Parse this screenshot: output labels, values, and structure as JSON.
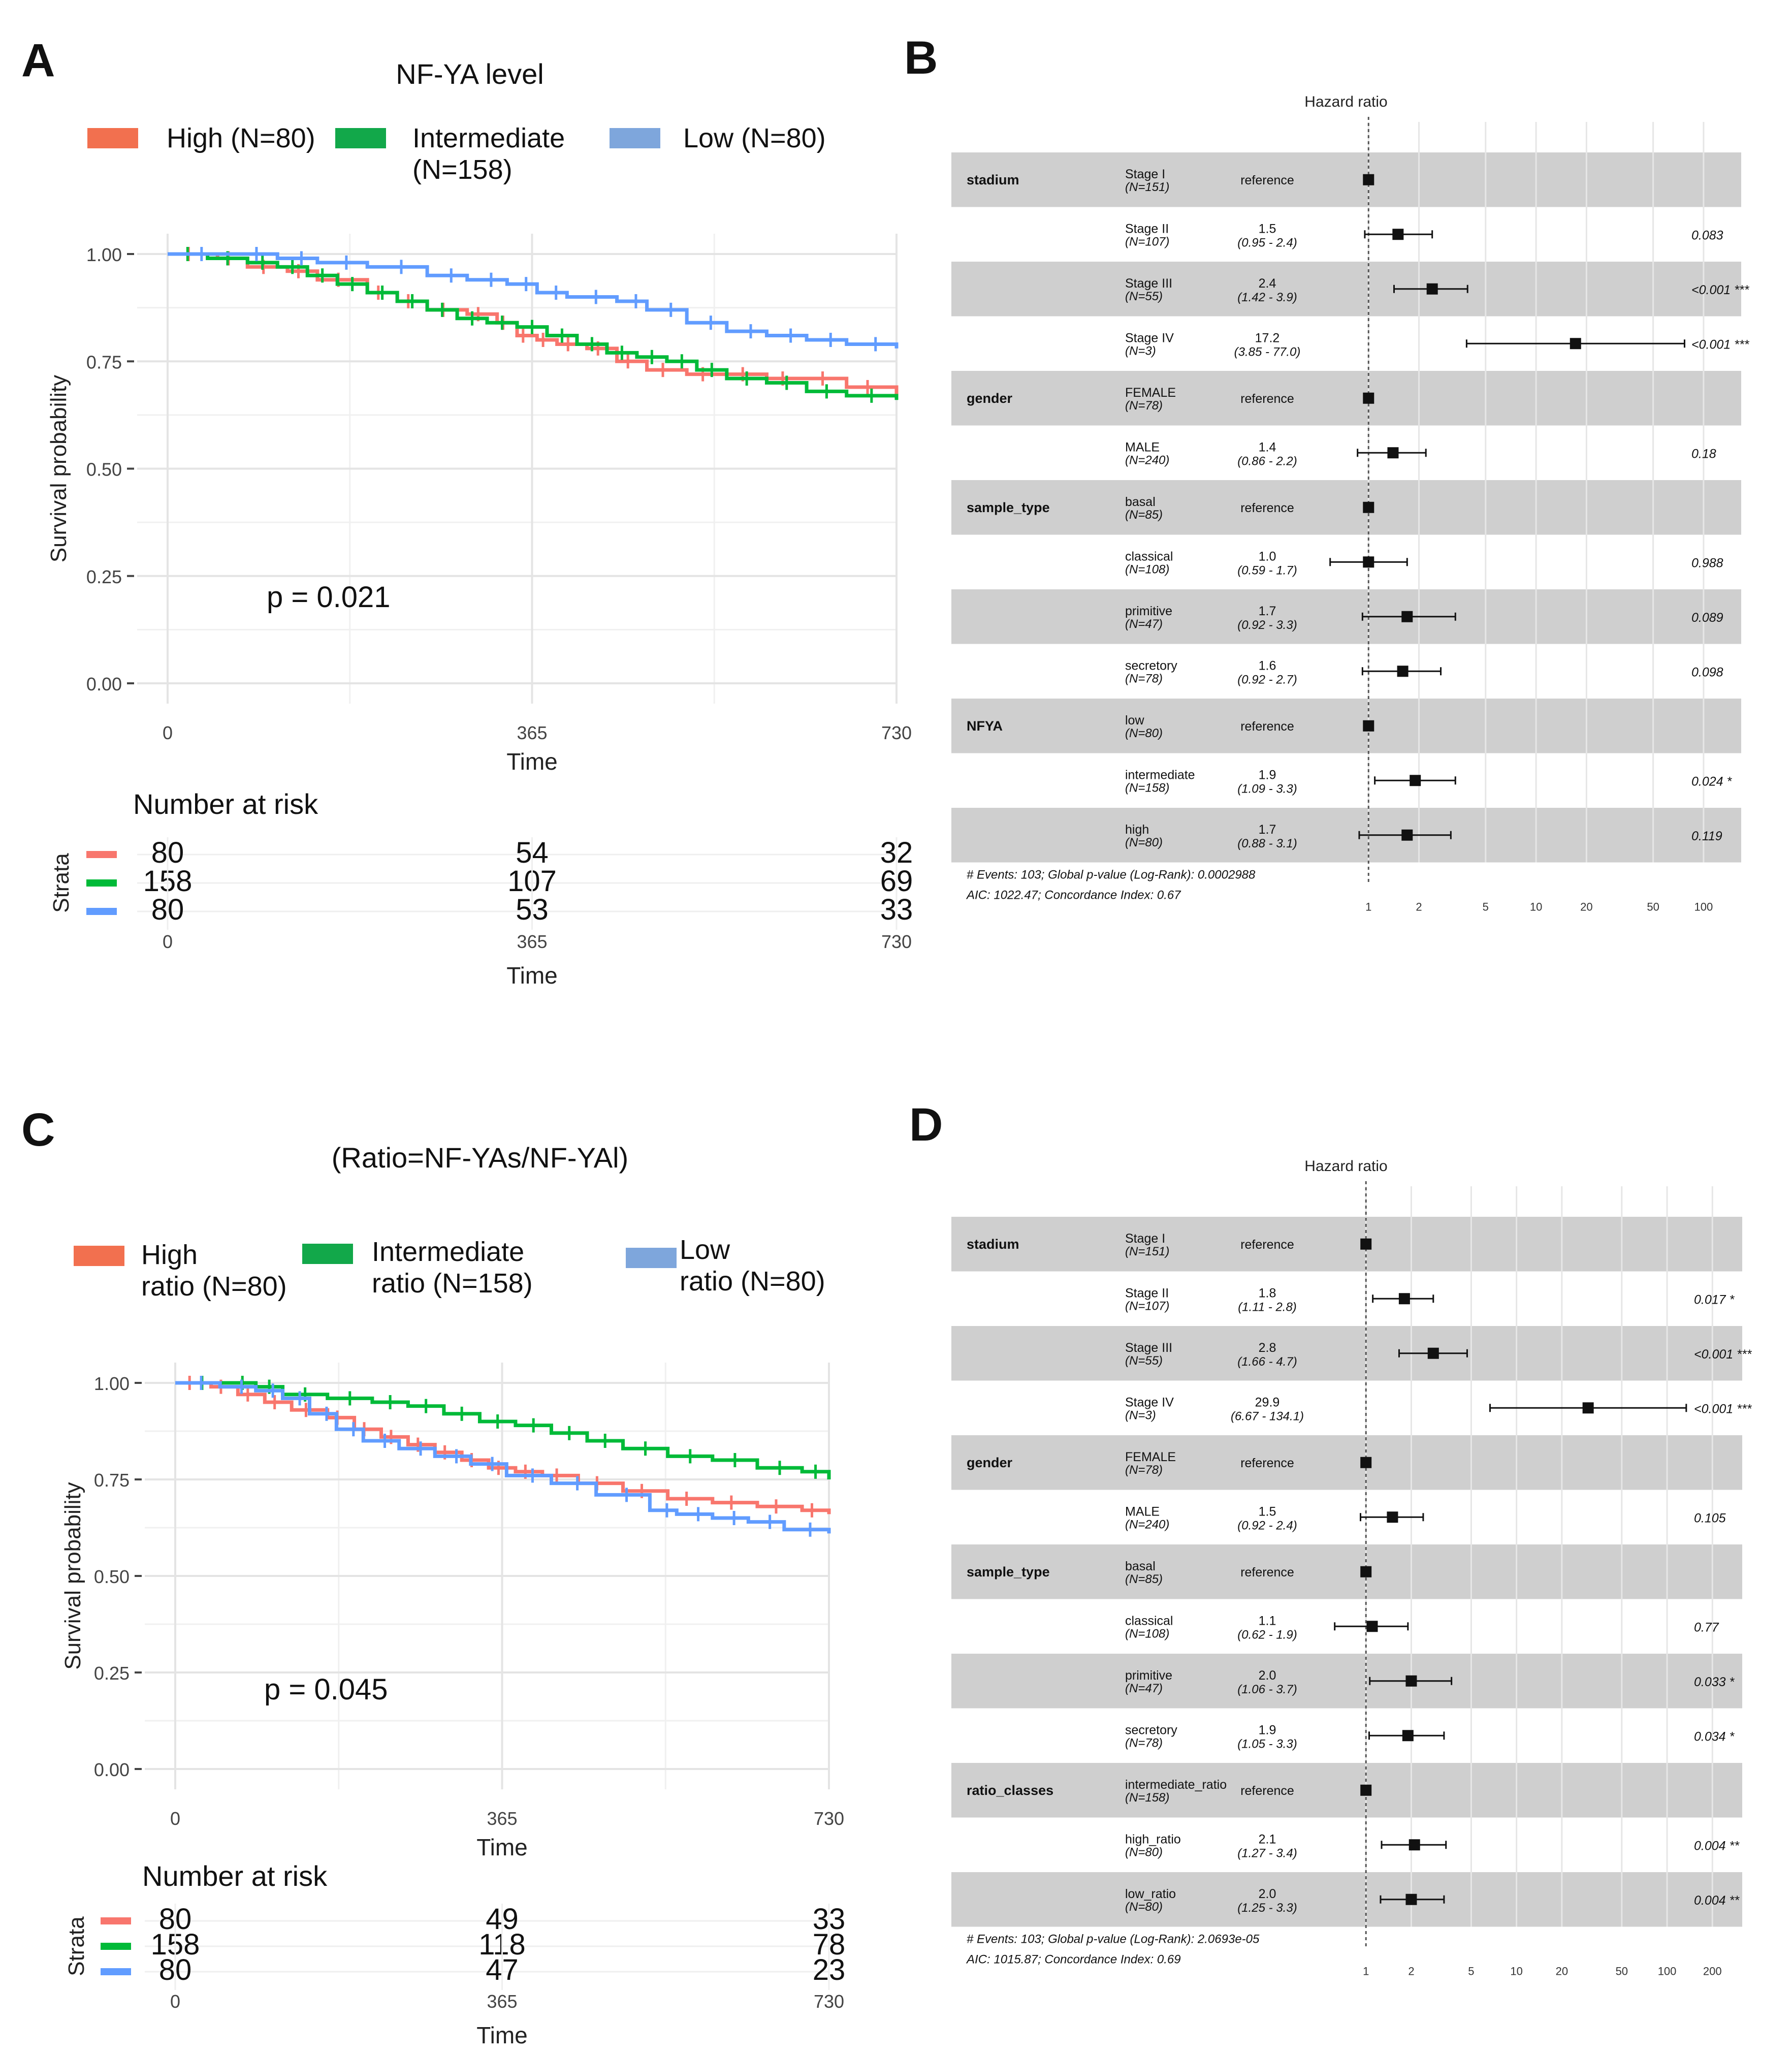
{
  "panels": {
    "A": {
      "letter": "A",
      "title": "NF-YA level",
      "legend": [
        {
          "lines": [
            "High (N=80)"
          ],
          "color": "#f2704f"
        },
        {
          "lines": [
            "Intermediate",
            "(N=158)"
          ],
          "color": "#12a84a"
        },
        {
          "lines": [
            "Low (N=80)"
          ],
          "color": "#7ea6dc"
        }
      ],
      "p_value": "p = 0.021",
      "risk_table": {
        "title": "Number at risk",
        "strata_label": "Strata",
        "rows": [
          {
            "color": "#f8766d",
            "values": [
              "80",
              "54",
              "32"
            ]
          },
          {
            "color": "#00ba38",
            "values": [
              "158",
              "107",
              "69"
            ]
          },
          {
            "color": "#619cff",
            "values": [
              "80",
              "53",
              "33"
            ]
          }
        ],
        "xlabel": "Time",
        "xticks": [
          "0",
          "365",
          "730"
        ]
      }
    },
    "B": {
      "letter": "B",
      "title": "Hazard ratio",
      "rows": [
        {
          "var": "stadium",
          "level": "Stage I",
          "n": "(N=151)",
          "hr": "reference",
          "ci": "",
          "p": "",
          "shade": true
        },
        {
          "var": "",
          "level": "Stage II",
          "n": "(N=107)",
          "hr": "1.5",
          "ci": "(0.95 - 2.4)",
          "p": "0.083",
          "shade": false
        },
        {
          "var": "",
          "level": "Stage III",
          "n": "(N=55)",
          "hr": "2.4",
          "ci": "(1.42 - 3.9)",
          "p": "<0.001 ***",
          "shade": true
        },
        {
          "var": "",
          "level": "Stage IV",
          "n": "(N=3)",
          "hr": "17.2",
          "ci": "(3.85 - 77.0)",
          "p": "<0.001 ***",
          "shade": false
        },
        {
          "var": "gender",
          "level": "FEMALE",
          "n": "(N=78)",
          "hr": "reference",
          "ci": "",
          "p": "",
          "shade": true
        },
        {
          "var": "",
          "level": "MALE",
          "n": "(N=240)",
          "hr": "1.4",
          "ci": "(0.86 - 2.2)",
          "p": "0.18",
          "shade": false
        },
        {
          "var": "sample_type",
          "level": "basal",
          "n": "(N=85)",
          "hr": "reference",
          "ci": "",
          "p": "",
          "shade": true
        },
        {
          "var": "",
          "level": "classical",
          "n": "(N=108)",
          "hr": "1.0",
          "ci": "(0.59 - 1.7)",
          "p": "0.988",
          "shade": false
        },
        {
          "var": "",
          "level": "primitive",
          "n": "(N=47)",
          "hr": "1.7",
          "ci": "(0.92 - 3.3)",
          "p": "0.089",
          "shade": true
        },
        {
          "var": "",
          "level": "secretory",
          "n": "(N=78)",
          "hr": "1.6",
          "ci": "(0.92 - 2.7)",
          "p": "0.098",
          "shade": false
        },
        {
          "var": "NFYA",
          "level": "low",
          "n": "(N=80)",
          "hr": "reference",
          "ci": "",
          "p": "",
          "shade": true
        },
        {
          "var": "",
          "level": "intermediate",
          "n": "(N=158)",
          "hr": "1.9",
          "ci": "(1.09 - 3.3)",
          "p": "0.024 *",
          "shade": false
        },
        {
          "var": "",
          "level": "high",
          "n": "(N=80)",
          "hr": "1.7",
          "ci": "(0.88 - 3.1)",
          "p": "0.119",
          "shade": true
        }
      ],
      "footer": [
        "# Events: 103; Global p-value (Log-Rank): 0.0002988",
        "AIC: 1022.47; Concordance Index: 0.67"
      ],
      "xticks": [
        "1",
        "2",
        "5",
        "10",
        "20",
        "50",
        "100"
      ]
    },
    "C": {
      "letter": "C",
      "title": "(Ratio=NF-YAs/NF-YAl)",
      "legend": [
        {
          "lines": [
            "High",
            "ratio (N=80)"
          ],
          "color": "#f2704f"
        },
        {
          "lines": [
            "Intermediate",
            "ratio (N=158)"
          ],
          "color": "#12a84a"
        },
        {
          "lines": [
            "Low",
            "ratio (N=80)"
          ],
          "color": "#7ea6dc"
        }
      ],
      "p_value": "p = 0.045",
      "risk_table": {
        "title": "Number at risk",
        "strata_label": "Strata",
        "rows": [
          {
            "color": "#f8766d",
            "values": [
              "80",
              "49",
              "33"
            ]
          },
          {
            "color": "#00ba38",
            "values": [
              "158",
              "118",
              "78"
            ]
          },
          {
            "color": "#619cff",
            "values": [
              "80",
              "47",
              "23"
            ]
          }
        ],
        "xlabel": "Time",
        "xticks": [
          "0",
          "365",
          "730"
        ]
      }
    },
    "D": {
      "letter": "D",
      "title": "Hazard ratio",
      "rows": [
        {
          "var": "stadium",
          "level": "Stage I",
          "n": "(N=151)",
          "hr": "reference",
          "ci": "",
          "p": "",
          "shade": true
        },
        {
          "var": "",
          "level": "Stage II",
          "n": "(N=107)",
          "hr": "1.8",
          "ci": "(1.11 - 2.8)",
          "p": "0.017 *",
          "shade": false
        },
        {
          "var": "",
          "level": "Stage III",
          "n": "(N=55)",
          "hr": "2.8",
          "ci": "(1.66 - 4.7)",
          "p": "<0.001 ***",
          "shade": true
        },
        {
          "var": "",
          "level": "Stage IV",
          "n": "(N=3)",
          "hr": "29.9",
          "ci": "(6.67 - 134.1)",
          "p": "<0.001 ***",
          "shade": false
        },
        {
          "var": "gender",
          "level": "FEMALE",
          "n": "(N=78)",
          "hr": "reference",
          "ci": "",
          "p": "",
          "shade": true
        },
        {
          "var": "",
          "level": "MALE",
          "n": "(N=240)",
          "hr": "1.5",
          "ci": "(0.92 - 2.4)",
          "p": "0.105",
          "shade": false
        },
        {
          "var": "sample_type",
          "level": "basal",
          "n": "(N=85)",
          "hr": "reference",
          "ci": "",
          "p": "",
          "shade": true
        },
        {
          "var": "",
          "level": "classical",
          "n": "(N=108)",
          "hr": "1.1",
          "ci": "(0.62 - 1.9)",
          "p": "0.77",
          "shade": false
        },
        {
          "var": "",
          "level": "primitive",
          "n": "(N=47)",
          "hr": "2.0",
          "ci": "(1.06 - 3.7)",
          "p": "0.033 *",
          "shade": true
        },
        {
          "var": "",
          "level": "secretory",
          "n": "(N=78)",
          "hr": "1.9",
          "ci": "(1.05 - 3.3)",
          "p": "0.034 *",
          "shade": false
        },
        {
          "var": "ratio_classes",
          "level": "intermediate_ratio",
          "n": "(N=158)",
          "hr": "reference",
          "ci": "",
          "p": "",
          "shade": true
        },
        {
          "var": "",
          "level": "high_ratio",
          "n": "(N=80)",
          "hr": "2.1",
          "ci": "(1.27 - 3.4)",
          "p": "0.004 **",
          "shade": false
        },
        {
          "var": "",
          "level": "low_ratio",
          "n": "(N=80)",
          "hr": "2.0",
          "ci": "(1.25 - 3.3)",
          "p": "0.004 **",
          "shade": true
        }
      ],
      "footer": [
        "# Events: 103; Global p-value (Log-Rank): 2.0693e-05",
        "AIC: 1015.87; Concordance Index: 0.69"
      ],
      "xticks": [
        "1",
        "2",
        "5",
        "10",
        "20",
        "50",
        "100",
        "200"
      ]
    }
  },
  "chart_data": [
    {
      "type": "line",
      "panel": "A",
      "title": "NF-YA level",
      "xlabel": "Time",
      "ylabel": "Survival probability",
      "xlim": [
        0,
        730
      ],
      "ylim": [
        0,
        1
      ],
      "xticks": [
        "0",
        "365",
        "730"
      ],
      "yticks": [
        "0.00",
        "0.25",
        "0.50",
        "0.75",
        "1.00"
      ],
      "annotation": "p = 0.021",
      "series": [
        {
          "name": "High (N=80)",
          "color": "#f8766d",
          "x": [
            0,
            50,
            80,
            120,
            150,
            200,
            230,
            260,
            300,
            330,
            350,
            370,
            390,
            420,
            450,
            480,
            520,
            560,
            600,
            640,
            680,
            730
          ],
          "y": [
            1.0,
            0.99,
            0.97,
            0.96,
            0.94,
            0.91,
            0.89,
            0.87,
            0.86,
            0.84,
            0.81,
            0.8,
            0.79,
            0.78,
            0.75,
            0.73,
            0.72,
            0.72,
            0.71,
            0.71,
            0.69,
            0.67
          ]
        },
        {
          "name": "Intermediate (N=158)",
          "color": "#00ba38",
          "x": [
            0,
            40,
            80,
            110,
            140,
            170,
            200,
            230,
            260,
            290,
            320,
            350,
            380,
            410,
            440,
            470,
            500,
            530,
            560,
            600,
            640,
            680,
            730
          ],
          "y": [
            1.0,
            0.99,
            0.98,
            0.97,
            0.95,
            0.93,
            0.91,
            0.89,
            0.87,
            0.85,
            0.84,
            0.83,
            0.81,
            0.79,
            0.77,
            0.76,
            0.75,
            0.73,
            0.71,
            0.7,
            0.68,
            0.67,
            0.66
          ]
        },
        {
          "name": "Low (N=80)",
          "color": "#619cff",
          "x": [
            0,
            60,
            110,
            150,
            200,
            260,
            300,
            340,
            370,
            400,
            450,
            480,
            520,
            560,
            600,
            640,
            680,
            730
          ],
          "y": [
            1.0,
            1.0,
            0.99,
            0.98,
            0.97,
            0.95,
            0.94,
            0.93,
            0.91,
            0.9,
            0.89,
            0.87,
            0.84,
            0.82,
            0.81,
            0.8,
            0.79,
            0.78
          ]
        }
      ]
    },
    {
      "type": "line",
      "panel": "C",
      "title": "(Ratio=NF-YAs/NF-YAl)",
      "xlabel": "Time",
      "ylabel": "Survival probability",
      "xlim": [
        0,
        730
      ],
      "ylim": [
        0,
        1
      ],
      "xticks": [
        "0",
        "365",
        "730"
      ],
      "yticks": [
        "0.00",
        "0.25",
        "0.50",
        "0.75",
        "1.00"
      ],
      "annotation": "p = 0.045",
      "series": [
        {
          "name": "High ratio (N=80)",
          "color": "#f8766d",
          "x": [
            0,
            40,
            70,
            100,
            130,
            170,
            200,
            230,
            260,
            290,
            320,
            350,
            380,
            410,
            450,
            500,
            550,
            600,
            650,
            700,
            730
          ],
          "y": [
            1.0,
            0.99,
            0.97,
            0.95,
            0.93,
            0.91,
            0.88,
            0.86,
            0.84,
            0.82,
            0.8,
            0.78,
            0.77,
            0.76,
            0.74,
            0.72,
            0.7,
            0.69,
            0.68,
            0.67,
            0.66
          ]
        },
        {
          "name": "Intermediate ratio (N=158)",
          "color": "#00ba38",
          "x": [
            0,
            60,
            90,
            120,
            170,
            220,
            260,
            300,
            340,
            380,
            420,
            460,
            500,
            550,
            600,
            650,
            700,
            730
          ],
          "y": [
            1.0,
            1.0,
            0.99,
            0.97,
            0.96,
            0.95,
            0.94,
            0.92,
            0.9,
            0.89,
            0.87,
            0.85,
            0.83,
            0.81,
            0.8,
            0.78,
            0.77,
            0.75
          ]
        },
        {
          "name": "Low ratio (N=80)",
          "color": "#619cff",
          "x": [
            0,
            50,
            90,
            120,
            150,
            180,
            210,
            250,
            290,
            330,
            370,
            420,
            470,
            530,
            560,
            600,
            640,
            680,
            730
          ],
          "y": [
            1.0,
            0.99,
            0.98,
            0.96,
            0.92,
            0.88,
            0.85,
            0.83,
            0.81,
            0.79,
            0.76,
            0.74,
            0.71,
            0.67,
            0.66,
            0.65,
            0.64,
            0.62,
            0.61
          ]
        }
      ]
    },
    {
      "type": "scatter",
      "panel": "B",
      "title": "Hazard ratio",
      "scale": "log",
      "xlim": [
        0.5,
        120
      ],
      "points": [
        {
          "label": "Stage I",
          "hr": 1.0,
          "lo": 1.0,
          "hi": 1.0
        },
        {
          "label": "Stage II",
          "hr": 1.5,
          "lo": 0.95,
          "hi": 2.4
        },
        {
          "label": "Stage III",
          "hr": 2.4,
          "lo": 1.42,
          "hi": 3.9
        },
        {
          "label": "Stage IV",
          "hr": 17.2,
          "lo": 3.85,
          "hi": 77.0
        },
        {
          "label": "FEMALE",
          "hr": 1.0,
          "lo": 1.0,
          "hi": 1.0
        },
        {
          "label": "MALE",
          "hr": 1.4,
          "lo": 0.86,
          "hi": 2.2
        },
        {
          "label": "basal",
          "hr": 1.0,
          "lo": 1.0,
          "hi": 1.0
        },
        {
          "label": "classical",
          "hr": 1.0,
          "lo": 0.59,
          "hi": 1.7
        },
        {
          "label": "primitive",
          "hr": 1.7,
          "lo": 0.92,
          "hi": 3.3
        },
        {
          "label": "secretory",
          "hr": 1.6,
          "lo": 0.92,
          "hi": 2.7
        },
        {
          "label": "low",
          "hr": 1.0,
          "lo": 1.0,
          "hi": 1.0
        },
        {
          "label": "intermediate",
          "hr": 1.9,
          "lo": 1.09,
          "hi": 3.3
        },
        {
          "label": "high",
          "hr": 1.7,
          "lo": 0.88,
          "hi": 3.1
        }
      ]
    },
    {
      "type": "scatter",
      "panel": "D",
      "title": "Hazard ratio",
      "scale": "log",
      "xlim": [
        0.5,
        250
      ],
      "points": [
        {
          "label": "Stage I",
          "hr": 1.0,
          "lo": 1.0,
          "hi": 1.0
        },
        {
          "label": "Stage II",
          "hr": 1.8,
          "lo": 1.11,
          "hi": 2.8
        },
        {
          "label": "Stage III",
          "hr": 2.8,
          "lo": 1.66,
          "hi": 4.7
        },
        {
          "label": "Stage IV",
          "hr": 29.9,
          "lo": 6.67,
          "hi": 134.1
        },
        {
          "label": "FEMALE",
          "hr": 1.0,
          "lo": 1.0,
          "hi": 1.0
        },
        {
          "label": "MALE",
          "hr": 1.5,
          "lo": 0.92,
          "hi": 2.4
        },
        {
          "label": "basal",
          "hr": 1.0,
          "lo": 1.0,
          "hi": 1.0
        },
        {
          "label": "classical",
          "hr": 1.1,
          "lo": 0.62,
          "hi": 1.9
        },
        {
          "label": "primitive",
          "hr": 2.0,
          "lo": 1.06,
          "hi": 3.7
        },
        {
          "label": "secretory",
          "hr": 1.9,
          "lo": 1.05,
          "hi": 3.3
        },
        {
          "label": "intermediate_ratio",
          "hr": 1.0,
          "lo": 1.0,
          "hi": 1.0
        },
        {
          "label": "high_ratio",
          "hr": 2.1,
          "lo": 1.27,
          "hi": 3.4
        },
        {
          "label": "low_ratio",
          "hr": 2.0,
          "lo": 1.25,
          "hi": 3.3
        }
      ]
    }
  ]
}
